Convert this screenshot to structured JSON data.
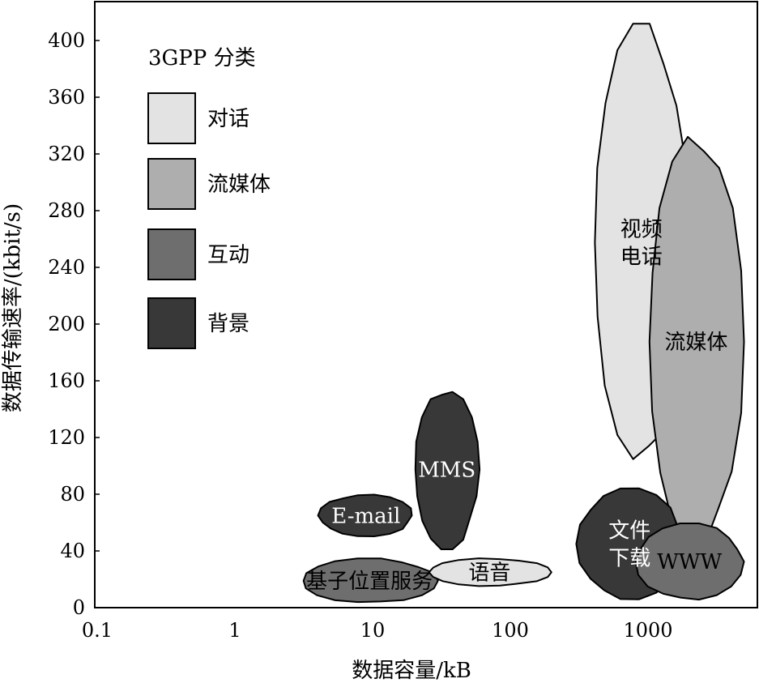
{
  "chart_data": {
    "type": "scatter",
    "xlabel": "数据容量/kB",
    "ylabel": "数据传输速率/(kbit/s)",
    "x_scale": "log",
    "xlim": [
      0.1,
      7000
    ],
    "ylim": [
      0,
      420
    ],
    "x_ticks": [
      "0.1",
      "1",
      "10",
      "100",
      "1000"
    ],
    "y_ticks": [
      "0",
      "40",
      "80",
      "120",
      "160",
      "200",
      "240",
      "280",
      "320",
      "360",
      "400"
    ],
    "grid": false,
    "legend": {
      "title": "3GPP 分类",
      "placement": "top-left",
      "entries": [
        {
          "label": "对话",
          "color": "#e3e3e3"
        },
        {
          "label": "流媒体",
          "color": "#aeaeae"
        },
        {
          "label": "互动",
          "color": "#6e6e6e"
        },
        {
          "label": "背景",
          "color": "#383838"
        }
      ]
    },
    "regions": [
      {
        "label": "视频\n电话",
        "class": "对话",
        "x": [
          400,
          2000
        ],
        "y": [
          100,
          415
        ]
      },
      {
        "label": "流媒体",
        "class": "流媒体",
        "x": [
          1000,
          5000
        ],
        "y": [
          40,
          335
        ]
      },
      {
        "label": "MMS",
        "class": "背景",
        "x": [
          20,
          60
        ],
        "y": [
          40,
          155
        ]
      },
      {
        "label": "E-mail",
        "class": "背景",
        "x": [
          4,
          20
        ],
        "y": [
          50,
          80
        ]
      },
      {
        "label": "文件\n下载",
        "class": "背景",
        "x": [
          300,
          1800
        ],
        "y": [
          5,
          85
        ]
      },
      {
        "label": "WWW",
        "class": "互动",
        "x": [
          800,
          5000
        ],
        "y": [
          5,
          60
        ]
      },
      {
        "label": "基子位置服务",
        "class": "互动",
        "x": [
          3,
          30
        ],
        "y": [
          3,
          35
        ]
      },
      {
        "label": "语音",
        "class": "对话",
        "x": [
          25,
          200
        ],
        "y": [
          15,
          35
        ]
      }
    ]
  }
}
